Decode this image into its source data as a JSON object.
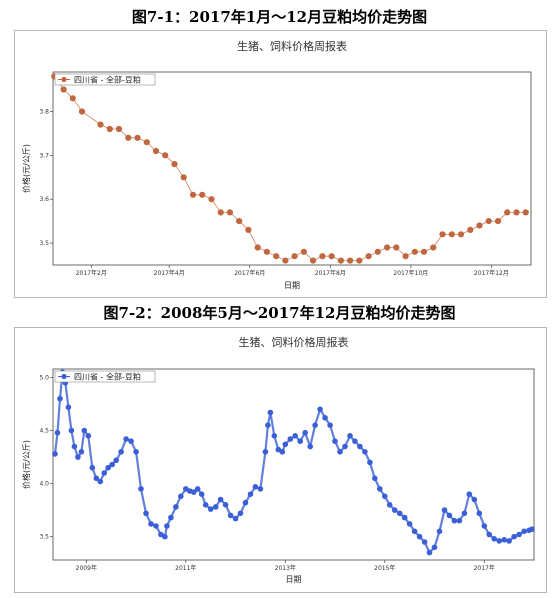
{
  "figures": [
    {
      "caption": "图7-1：2017年1月～12月豆粕均价走势图"
    },
    {
      "caption": "图7-2：2008年5月～2017年12月豆粕均价走势图"
    }
  ],
  "chart_data": [
    {
      "type": "line",
      "title": "生猪、饲料价格周报表",
      "xlabel": "日期",
      "ylabel": "价格(元/公斤)",
      "x_ticks": [
        "2017年2月",
        "2017年4月",
        "2017年6月",
        "2017年8月",
        "2017年10月",
        "2017年12月"
      ],
      "y_ticks": [
        3.5,
        3.6,
        3.7,
        3.8
      ],
      "ylim": [
        3.45,
        3.89
      ],
      "grid": false,
      "legend_position": "top-left",
      "series": [
        {
          "name": "四川省 - 全部-豆粕",
          "color": "#c0673f",
          "marker": "circle",
          "x": [
            "2017-01-04",
            "2017-01-11",
            "2017-01-18",
            "2017-01-25",
            "2017-02-08",
            "2017-02-15",
            "2017-02-22",
            "2017-03-01",
            "2017-03-08",
            "2017-03-15",
            "2017-03-22",
            "2017-03-29",
            "2017-04-05",
            "2017-04-12",
            "2017-04-19",
            "2017-04-26",
            "2017-05-03",
            "2017-05-10",
            "2017-05-17",
            "2017-05-24",
            "2017-05-31",
            "2017-06-07",
            "2017-06-14",
            "2017-06-21",
            "2017-06-28",
            "2017-07-05",
            "2017-07-12",
            "2017-07-19",
            "2017-07-26",
            "2017-08-02",
            "2017-08-09",
            "2017-08-16",
            "2017-08-23",
            "2017-08-30",
            "2017-09-06",
            "2017-09-13",
            "2017-09-20",
            "2017-09-27",
            "2017-10-04",
            "2017-10-11",
            "2017-10-18",
            "2017-10-25",
            "2017-11-01",
            "2017-11-08",
            "2017-11-15",
            "2017-11-22",
            "2017-11-29",
            "2017-12-06",
            "2017-12-13",
            "2017-12-20",
            "2017-12-27"
          ],
          "y": [
            3.88,
            3.85,
            3.83,
            3.8,
            3.77,
            3.76,
            3.76,
            3.74,
            3.74,
            3.73,
            3.71,
            3.7,
            3.68,
            3.65,
            3.61,
            3.61,
            3.6,
            3.57,
            3.57,
            3.55,
            3.53,
            3.49,
            3.48,
            3.47,
            3.46,
            3.47,
            3.48,
            3.46,
            3.47,
            3.47,
            3.46,
            3.46,
            3.46,
            3.47,
            3.48,
            3.49,
            3.49,
            3.47,
            3.48,
            3.48,
            3.49,
            3.52,
            3.52,
            3.52,
            3.53,
            3.54,
            3.55,
            3.55,
            3.57,
            3.57,
            3.57
          ]
        }
      ]
    },
    {
      "type": "line",
      "title": "生猪、饲料价格周报表",
      "xlabel": "日期",
      "ylabel": "价格(元/公斤)",
      "x_ticks": [
        "2009年",
        "2011年",
        "2013年",
        "2015年",
        "2017年"
      ],
      "y_ticks": [
        3.5,
        4.0,
        4.5,
        5.0
      ],
      "ylim": [
        3.28,
        5.08
      ],
      "grid": false,
      "legend_position": "top-left",
      "series": [
        {
          "name": "四川省 - 全部-豆粕",
          "color": "#3b5fd6",
          "marker": "circle",
          "x": [
            2008.37,
            2008.42,
            2008.47,
            2008.52,
            2008.58,
            2008.64,
            2008.7,
            2008.76,
            2008.83,
            2008.9,
            2008.96,
            2009.04,
            2009.12,
            2009.2,
            2009.28,
            2009.36,
            2009.44,
            2009.52,
            2009.6,
            2009.7,
            2009.8,
            2009.9,
            2010.0,
            2010.1,
            2010.2,
            2010.3,
            2010.4,
            2010.5,
            2010.58,
            2010.62,
            2010.7,
            2010.8,
            2010.9,
            2011.0,
            2011.08,
            2011.16,
            2011.24,
            2011.32,
            2011.4,
            2011.5,
            2011.6,
            2011.7,
            2011.8,
            2011.9,
            2012.0,
            2012.1,
            2012.2,
            2012.3,
            2012.4,
            2012.5,
            2012.6,
            2012.65,
            2012.7,
            2012.78,
            2012.86,
            2012.94,
            2013.0,
            2013.1,
            2013.2,
            2013.3,
            2013.4,
            2013.5,
            2013.6,
            2013.7,
            2013.8,
            2013.9,
            2014.0,
            2014.1,
            2014.2,
            2014.3,
            2014.4,
            2014.5,
            2014.6,
            2014.7,
            2014.8,
            2014.9,
            2015.0,
            2015.1,
            2015.2,
            2015.3,
            2015.4,
            2015.5,
            2015.6,
            2015.7,
            2015.8,
            2015.9,
            2016.0,
            2016.1,
            2016.2,
            2016.3,
            2016.4,
            2016.5,
            2016.6,
            2016.7,
            2016.8,
            2016.9,
            2017.0,
            2017.1,
            2017.2,
            2017.3,
            2017.4,
            2017.5,
            2017.6,
            2017.7,
            2017.8,
            2017.9,
            2017.96
          ],
          "y": [
            4.28,
            4.48,
            4.8,
            5.05,
            4.95,
            4.72,
            4.5,
            4.35,
            4.25,
            4.3,
            4.5,
            4.45,
            4.15,
            4.05,
            4.02,
            4.1,
            4.15,
            4.18,
            4.22,
            4.3,
            4.42,
            4.4,
            4.3,
            3.95,
            3.72,
            3.62,
            3.6,
            3.52,
            3.5,
            3.6,
            3.68,
            3.78,
            3.88,
            3.95,
            3.93,
            3.92,
            3.95,
            3.9,
            3.8,
            3.76,
            3.78,
            3.85,
            3.8,
            3.7,
            3.67,
            3.72,
            3.82,
            3.9,
            3.97,
            3.95,
            4.3,
            4.55,
            4.67,
            4.45,
            4.32,
            4.3,
            4.37,
            4.42,
            4.45,
            4.4,
            4.48,
            4.35,
            4.55,
            4.7,
            4.62,
            4.55,
            4.4,
            4.3,
            4.35,
            4.45,
            4.4,
            4.35,
            4.3,
            4.2,
            4.05,
            3.95,
            3.88,
            3.8,
            3.75,
            3.72,
            3.68,
            3.62,
            3.55,
            3.5,
            3.45,
            3.35,
            3.4,
            3.55,
            3.75,
            3.7,
            3.65,
            3.65,
            3.72,
            3.9,
            3.85,
            3.72,
            3.6,
            3.52,
            3.48,
            3.46,
            3.47,
            3.46,
            3.5,
            3.52,
            3.55,
            3.56,
            3.57
          ]
        }
      ]
    }
  ]
}
